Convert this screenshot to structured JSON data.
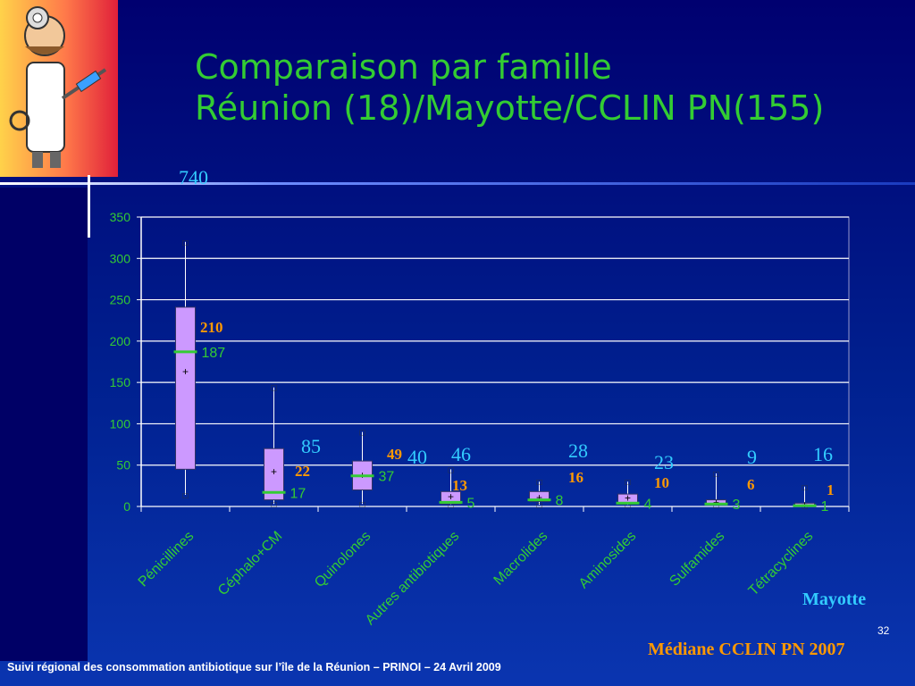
{
  "slide": {
    "title_line1": "Comparaison par famille",
    "title_line2": "Réunion (18)/Mayotte/CCLIN PN(155)",
    "footer": "Suivi régional des consommation antibiotique sur l’île de la Réunion – PRINOI – 24  Avril  2009",
    "page_number": "32",
    "legend_mayotte": "Mayotte",
    "legend_cclin": "Médiane CCLIN PN 2007"
  },
  "colors": {
    "box_fill": "#cc99ff",
    "median_line": "#33cc33",
    "mayotte": "#33ccff",
    "cclin": "#ff9900",
    "axis_text": "#33cc33",
    "grid": "#ffffff"
  },
  "chart_data": {
    "type": "box",
    "categories": [
      "Pénicillines",
      "Céphalo+CM",
      "Quinolones",
      "Autres antibiotiques",
      "Macrolides",
      "Aminosides",
      "Sulfamides",
      "Tétracyclines"
    ],
    "ylim": [
      0,
      350
    ],
    "yticks": [
      0,
      50,
      100,
      150,
      200,
      250,
      300,
      350
    ],
    "grid": true,
    "boxes": [
      {
        "min": 14,
        "q1": 45,
        "median": 187,
        "mean": 163,
        "q3": 241,
        "max": 320,
        "median_label": "187",
        "cclin": "210",
        "mayotte": "740"
      },
      {
        "min": 3,
        "q1": 8,
        "median": 17,
        "mean": 42,
        "q3": 70,
        "max": 144,
        "median_label": "17",
        "cclin": "22",
        "mayotte": "85"
      },
      {
        "min": 3,
        "q1": 20,
        "median": 37,
        "mean": 38,
        "q3": 55,
        "max": 90,
        "median_label": "37",
        "cclin": "49",
        "mayotte": "40"
      },
      {
        "min": 2,
        "q1": 3,
        "median": 5,
        "mean": 12,
        "q3": 18,
        "max": 45,
        "median_label": "5",
        "cclin": "13",
        "mayotte": "46"
      },
      {
        "min": 2,
        "q1": 6,
        "median": 8,
        "mean": 11,
        "q3": 18,
        "max": 30,
        "median_label": "8",
        "cclin": "16",
        "mayotte": "28"
      },
      {
        "min": 2,
        "q1": 3,
        "median": 4,
        "mean": 10,
        "q3": 15,
        "max": 30,
        "median_label": "4",
        "cclin": "10",
        "mayotte": "23"
      },
      {
        "min": 2,
        "q1": 3,
        "median": 3,
        "mean": 5,
        "q3": 8,
        "max": 40,
        "median_label": "3",
        "cclin": "6",
        "mayotte": "9"
      },
      {
        "min": 1,
        "q1": 1,
        "median": 1,
        "mean": 2,
        "q3": 4,
        "max": 24,
        "median_label": "1",
        "cclin": "1",
        "mayotte": "16"
      }
    ]
  }
}
